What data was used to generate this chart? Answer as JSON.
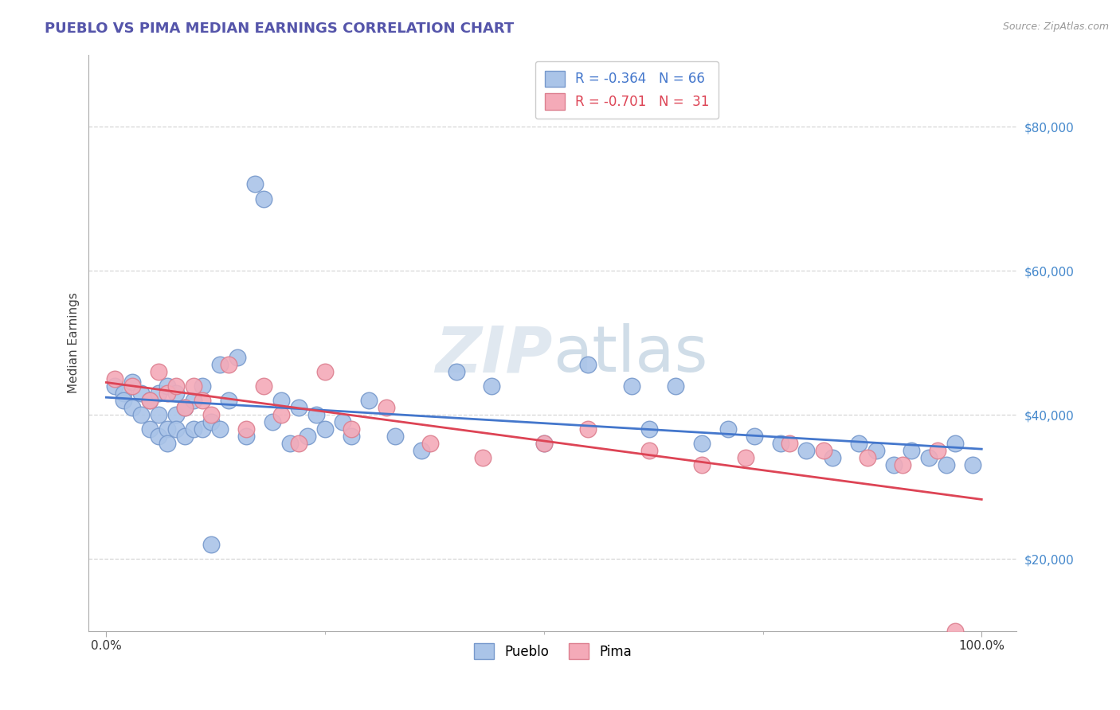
{
  "title": "PUEBLO VS PIMA MEDIAN EARNINGS CORRELATION CHART",
  "title_color": "#5555aa",
  "ylabel": "Median Earnings",
  "source_text": "Source: ZipAtlas.com",
  "background_color": "#ffffff",
  "grid_color": "#cccccc",
  "pueblo_color": "#aac4e8",
  "pueblo_edge_color": "#7799cc",
  "pima_color": "#f4aab8",
  "pima_edge_color": "#dd8090",
  "line_pueblo_color": "#4477cc",
  "line_pima_color": "#dd4455",
  "ytick_color": "#4488cc",
  "yticks": [
    20000,
    40000,
    60000,
    80000
  ],
  "ytick_labels": [
    "$20,000",
    "$40,000",
    "$60,000",
    "$80,000"
  ],
  "watermark_color": "#e0e8f0",
  "pueblo_x": [
    0.01,
    0.02,
    0.02,
    0.03,
    0.03,
    0.04,
    0.04,
    0.05,
    0.05,
    0.06,
    0.06,
    0.06,
    0.07,
    0.07,
    0.07,
    0.08,
    0.08,
    0.08,
    0.09,
    0.09,
    0.1,
    0.1,
    0.11,
    0.11,
    0.12,
    0.12,
    0.13,
    0.13,
    0.14,
    0.15,
    0.16,
    0.17,
    0.18,
    0.19,
    0.2,
    0.21,
    0.22,
    0.23,
    0.24,
    0.25,
    0.27,
    0.28,
    0.3,
    0.33,
    0.36,
    0.4,
    0.44,
    0.5,
    0.55,
    0.6,
    0.62,
    0.65,
    0.68,
    0.71,
    0.74,
    0.77,
    0.8,
    0.83,
    0.86,
    0.88,
    0.9,
    0.92,
    0.94,
    0.96,
    0.97,
    0.99
  ],
  "pueblo_y": [
    44000,
    43000,
    42000,
    44500,
    41000,
    40000,
    43000,
    42000,
    38000,
    43000,
    40000,
    37000,
    44000,
    38000,
    36000,
    43000,
    40000,
    38000,
    41000,
    37000,
    42000,
    38000,
    44000,
    38000,
    39000,
    22000,
    47000,
    38000,
    42000,
    48000,
    37000,
    72000,
    70000,
    39000,
    42000,
    36000,
    41000,
    37000,
    40000,
    38000,
    39000,
    37000,
    42000,
    37000,
    35000,
    46000,
    44000,
    36000,
    47000,
    44000,
    38000,
    44000,
    36000,
    38000,
    37000,
    36000,
    35000,
    34000,
    36000,
    35000,
    33000,
    35000,
    34000,
    33000,
    36000,
    33000
  ],
  "pima_x": [
    0.01,
    0.03,
    0.05,
    0.06,
    0.07,
    0.08,
    0.09,
    0.1,
    0.11,
    0.12,
    0.14,
    0.16,
    0.18,
    0.2,
    0.22,
    0.25,
    0.28,
    0.32,
    0.37,
    0.43,
    0.5,
    0.55,
    0.62,
    0.68,
    0.73,
    0.78,
    0.82,
    0.87,
    0.91,
    0.95,
    0.97
  ],
  "pima_y": [
    45000,
    44000,
    42000,
    46000,
    43000,
    44000,
    41000,
    44000,
    42000,
    40000,
    47000,
    38000,
    44000,
    40000,
    36000,
    46000,
    38000,
    41000,
    36000,
    34000,
    36000,
    38000,
    35000,
    33000,
    34000,
    36000,
    35000,
    34000,
    33000,
    35000,
    10000
  ]
}
